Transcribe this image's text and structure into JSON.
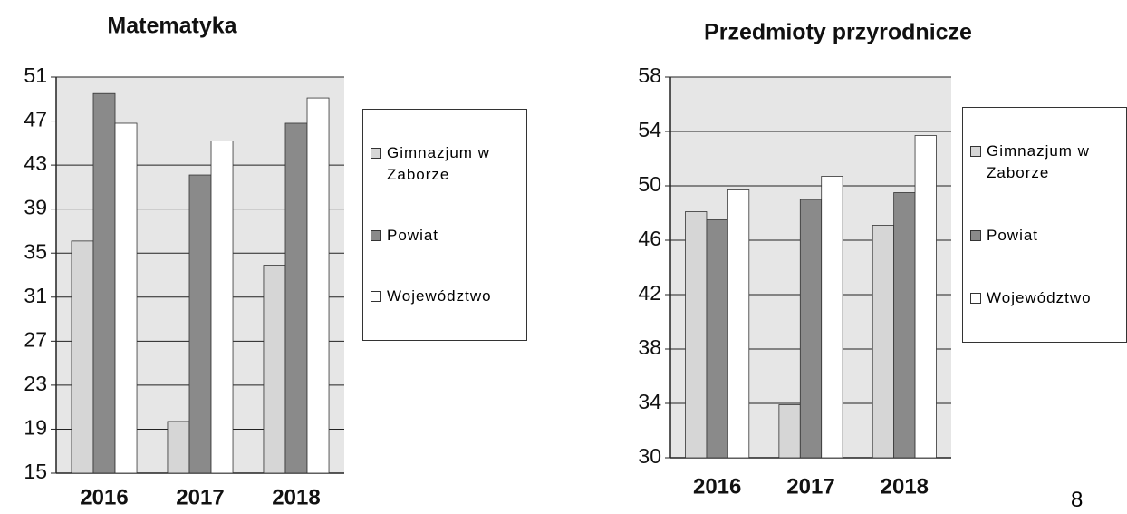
{
  "chart_data": [
    {
      "type": "bar",
      "title": "Matematyka",
      "categories": [
        "2016",
        "2017",
        "2018"
      ],
      "series": [
        {
          "name": "Gimnazjum w Zaborze",
          "color": "#d6d6d6",
          "values": [
            36.1,
            19.7,
            33.9
          ]
        },
        {
          "name": "Powiat",
          "color": "#8a8a8a",
          "values": [
            49.5,
            42.1,
            46.8
          ]
        },
        {
          "name": "Województwo",
          "color": "#ffffff",
          "values": [
            46.8,
            45.2,
            49.1
          ]
        }
      ],
      "ylim": [
        15,
        51
      ],
      "yticks": [
        15,
        19,
        23,
        27,
        31,
        35,
        39,
        43,
        47,
        51
      ],
      "grid": true,
      "legend": "right"
    },
    {
      "type": "bar",
      "title": "Przedmioty przyrodnicze",
      "categories": [
        "2016",
        "2017",
        "2018"
      ],
      "series": [
        {
          "name": "Gimnazjum w Zaborze",
          "color": "#d6d6d6",
          "values": [
            48.1,
            33.9,
            47.1
          ]
        },
        {
          "name": "Powiat",
          "color": "#8a8a8a",
          "values": [
            47.5,
            49,
            49.5
          ]
        },
        {
          "name": "Województwo",
          "color": "#ffffff",
          "values": [
            49.7,
            50.7,
            53.7
          ]
        }
      ],
      "ylim": [
        30,
        58
      ],
      "yticks": [
        30,
        34,
        38,
        42,
        46,
        50,
        54,
        58
      ],
      "grid": true,
      "legend": "right"
    }
  ],
  "page_number": "8"
}
